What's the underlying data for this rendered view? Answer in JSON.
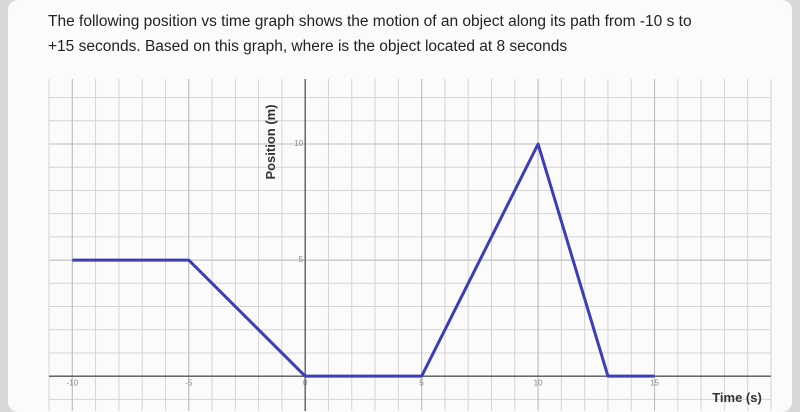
{
  "question_lines": [
    "The following position vs time graph shows the motion of an object along its path from -10 s to",
    "+15 seconds. Based on this graph, where is the object  located at 8 seconds"
  ],
  "chart_data": {
    "type": "line",
    "x_label": "Time (s)",
    "y_label": "Position (m)",
    "x": [
      -10,
      -5,
      0,
      5,
      10,
      13,
      15
    ],
    "values": [
      5,
      5,
      0,
      0,
      10,
      0,
      0
    ],
    "color": "#3d3db8",
    "xlim": [
      -11,
      20
    ],
    "ylim": [
      -1.5,
      12.8
    ],
    "xticks": [
      -10,
      -5,
      0,
      5,
      10,
      15
    ],
    "yticks": [
      5,
      10
    ],
    "grid": true,
    "grid_step": 1
  }
}
